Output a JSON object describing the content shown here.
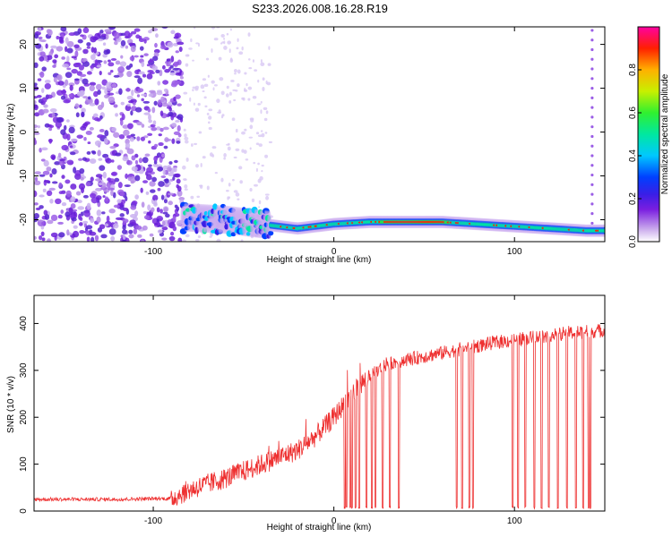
{
  "chart_data": [
    {
      "type": "heatmap",
      "title": "S233.2026.008.16.28.R19",
      "xlabel": "Height of straight line (km)",
      "ylabel": "Frequency (Hz)",
      "xlim": [
        -166,
        150
      ],
      "ylim": [
        -25,
        24
      ],
      "xticks": [
        -100,
        0,
        100
      ],
      "yticks": [
        20,
        10,
        0,
        -10,
        -20
      ],
      "colorbar": {
        "label": "Normalized spectral amplitude",
        "range": [
          0,
          1
        ],
        "ticks": [
          "0.0",
          "0.2",
          "0.4",
          "0.6",
          "0.8"
        ]
      },
      "ridge": [
        {
          "x": -80,
          "f": -19.5
        },
        {
          "x": -60,
          "f": -20
        },
        {
          "x": -40,
          "f": -21
        },
        {
          "x": -20,
          "f": -22
        },
        {
          "x": 0,
          "f": -21
        },
        {
          "x": 20,
          "f": -20.5
        },
        {
          "x": 40,
          "f": -20.5
        },
        {
          "x": 60,
          "f": -20.5
        },
        {
          "x": 80,
          "f": -21
        },
        {
          "x": 100,
          "f": -21.5
        },
        {
          "x": 120,
          "f": -22
        },
        {
          "x": 140,
          "f": -22.5
        }
      ]
    },
    {
      "type": "line",
      "xlabel": "Height of straight line (km)",
      "ylabel": "SNR (10 * v/v)",
      "xlim": [
        -166,
        150
      ],
      "ylim": [
        0,
        460
      ],
      "xticks": [
        -100,
        0,
        100
      ],
      "yticks": [
        0,
        100,
        200,
        300,
        400
      ],
      "trend": [
        {
          "x": -166,
          "y": 25
        },
        {
          "x": -120,
          "y": 25
        },
        {
          "x": -90,
          "y": 27
        },
        {
          "x": -80,
          "y": 45
        },
        {
          "x": -60,
          "y": 70
        },
        {
          "x": -40,
          "y": 100
        },
        {
          "x": -20,
          "y": 130
        },
        {
          "x": -10,
          "y": 160
        },
        {
          "x": 0,
          "y": 200
        },
        {
          "x": 10,
          "y": 250
        },
        {
          "x": 20,
          "y": 290
        },
        {
          "x": 30,
          "y": 315
        },
        {
          "x": 50,
          "y": 330
        },
        {
          "x": 70,
          "y": 345
        },
        {
          "x": 90,
          "y": 360
        },
        {
          "x": 110,
          "y": 370
        },
        {
          "x": 130,
          "y": 380
        },
        {
          "x": 150,
          "y": 385
        }
      ]
    }
  ]
}
